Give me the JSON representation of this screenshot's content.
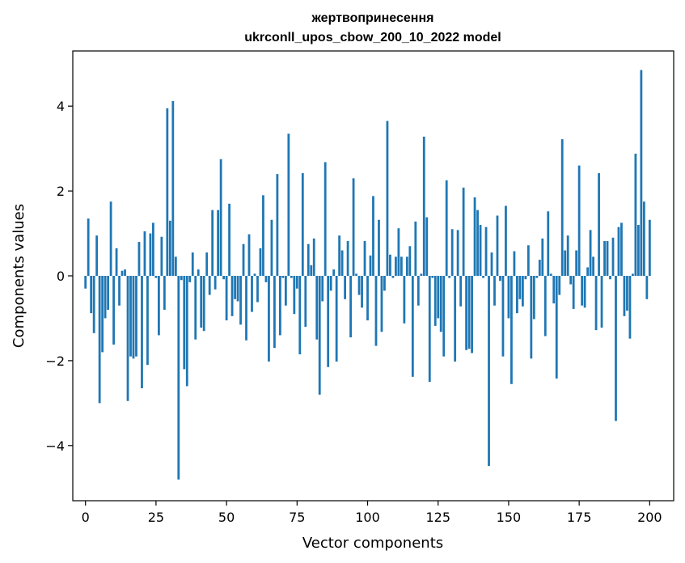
{
  "chart_data": {
    "type": "bar",
    "title": "жертвопринесення",
    "subtitle": "ukrconll_upos_cbow_200_10_2022 model",
    "xlabel": "Vector components",
    "ylabel": "Components values",
    "xlim": [
      -4.5,
      208.5
    ],
    "ylim": [
      -5.3,
      5.3
    ],
    "xticks": [
      0,
      25,
      50,
      75,
      100,
      125,
      150,
      175,
      200
    ],
    "yticks": [
      -4,
      -2,
      0,
      2,
      4
    ],
    "xtick_labels": [
      "0",
      "25",
      "50",
      "75",
      "100",
      "125",
      "150",
      "175",
      "200"
    ],
    "ytick_labels": [
      "−4",
      "−2",
      "0",
      "2",
      "4"
    ],
    "bar_color": "#1f77b4",
    "grid": false,
    "values": [
      -0.3,
      1.35,
      -0.88,
      -1.35,
      0.95,
      -3.0,
      -1.8,
      -1.0,
      -0.8,
      1.75,
      -1.62,
      0.65,
      -0.7,
      0.12,
      0.15,
      -2.95,
      -1.9,
      -1.95,
      -1.9,
      0.8,
      -2.65,
      1.05,
      -2.1,
      1.0,
      1.25,
      -0.05,
      -1.4,
      0.92,
      -0.8,
      3.95,
      1.3,
      4.12,
      0.45,
      -4.8,
      -0.1,
      -2.2,
      -2.6,
      -0.15,
      0.55,
      -1.5,
      0.15,
      -1.22,
      -1.3,
      0.55,
      -0.45,
      1.55,
      -0.32,
      1.55,
      2.75,
      -0.08,
      -1.05,
      1.7,
      -0.95,
      -0.55,
      -0.6,
      -1.15,
      0.75,
      -1.52,
      0.98,
      -0.85,
      0.05,
      -0.62,
      0.65,
      1.9,
      -0.15,
      -2.02,
      1.32,
      -1.7,
      2.4,
      -1.4,
      -0.05,
      -0.7,
      3.35,
      -0.05,
      -0.9,
      -0.3,
      -1.85,
      2.42,
      -1.2,
      0.75,
      0.25,
      0.88,
      -1.5,
      -2.8,
      -0.6,
      2.68,
      -2.15,
      -0.35,
      0.15,
      -2.02,
      0.95,
      0.6,
      -0.55,
      0.82,
      -1.45,
      2.3,
      0.05,
      -0.45,
      -0.75,
      0.82,
      -1.05,
      0.48,
      1.88,
      -1.65,
      1.32,
      -1.32,
      -0.35,
      3.65,
      0.5,
      -0.05,
      0.45,
      1.12,
      0.45,
      -1.12,
      0.45,
      0.7,
      -2.38,
      1.28,
      -0.7,
      0.05,
      3.28,
      1.38,
      -2.5,
      -0.05,
      -1.18,
      -1.0,
      -1.32,
      -1.9,
      2.25,
      -0.05,
      1.1,
      -2.02,
      1.08,
      -0.72,
      2.08,
      -1.75,
      -1.72,
      -1.82,
      1.85,
      1.55,
      1.2,
      -0.05,
      1.15,
      -4.48,
      0.55,
      -0.7,
      1.42,
      -0.12,
      -1.9,
      1.65,
      -1.0,
      -2.55,
      0.58,
      -0.88,
      -0.55,
      -0.72,
      -0.08,
      0.72,
      -1.95,
      -1.02,
      -0.05,
      0.38,
      0.88,
      -1.42,
      1.52,
      0.05,
      -0.65,
      -2.42,
      -0.45,
      3.22,
      0.6,
      0.95,
      -0.2,
      -0.78,
      0.6,
      2.6,
      -0.7,
      -0.75,
      0.2,
      1.08,
      0.45,
      -1.28,
      2.42,
      -1.22,
      0.82,
      0.82,
      -0.08,
      0.9,
      -3.42,
      1.15,
      1.25,
      -0.95,
      -0.82,
      -1.48,
      0.05,
      2.88,
      1.2,
      4.85,
      1.75,
      -0.55,
      1.32
    ]
  }
}
